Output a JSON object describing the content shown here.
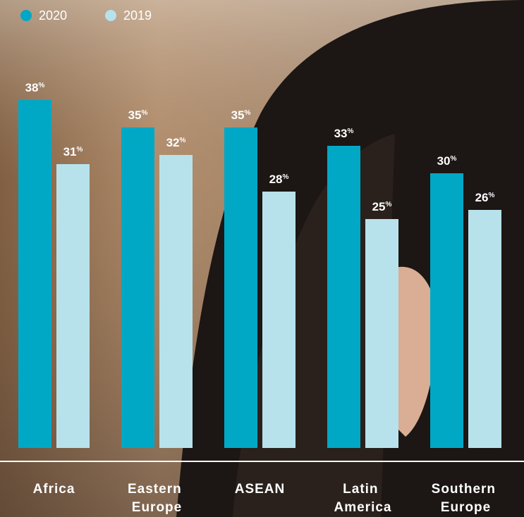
{
  "chart_data": {
    "type": "bar",
    "categories": [
      "Africa",
      "Eastern Europe",
      "ASEAN",
      "Latin America",
      "Southern Europe"
    ],
    "series": [
      {
        "name": "2020",
        "color": "#00a8c6",
        "values": [
          38,
          35,
          35,
          33,
          30
        ],
        "value_labels": [
          "38%",
          "35%",
          "35%",
          "33%",
          "30%"
        ]
      },
      {
        "name": "2019",
        "color": "#b8e2eb",
        "values": [
          31,
          32,
          28,
          25,
          26
        ],
        "value_labels": [
          "31%",
          "32%",
          "28%",
          "25%",
          "26%"
        ]
      }
    ],
    "legend": "top-left"
  }
}
